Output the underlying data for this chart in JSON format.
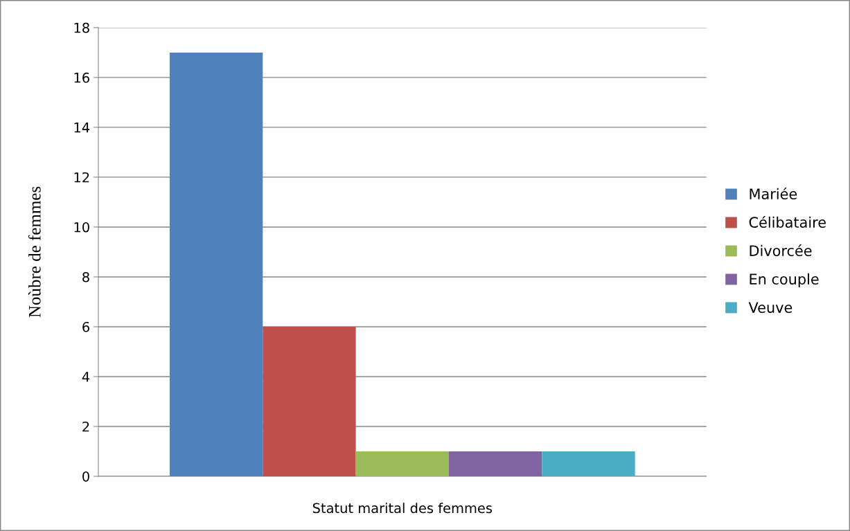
{
  "chart_data": {
    "type": "bar",
    "xlabel": "Statut marital des femmes",
    "ylabel": "Noùbre de femmes",
    "categories": [
      null
    ],
    "series": [
      {
        "name": "Mariée",
        "color": "#4f81bd",
        "values": [
          17
        ]
      },
      {
        "name": "Célibataire",
        "color": "#c0504d",
        "values": [
          6
        ]
      },
      {
        "name": "Divorcée",
        "color": "#9bbb59",
        "values": [
          1
        ]
      },
      {
        "name": "En couple",
        "color": "#8064a2",
        "values": [
          1
        ]
      },
      {
        "name": "Veuve",
        "color": "#4bacc6",
        "values": [
          1
        ]
      }
    ],
    "ylim": [
      0,
      18
    ],
    "yticks": [
      0,
      2,
      4,
      6,
      8,
      10,
      12,
      14,
      16,
      18
    ],
    "grid": "y",
    "legend": "right"
  }
}
